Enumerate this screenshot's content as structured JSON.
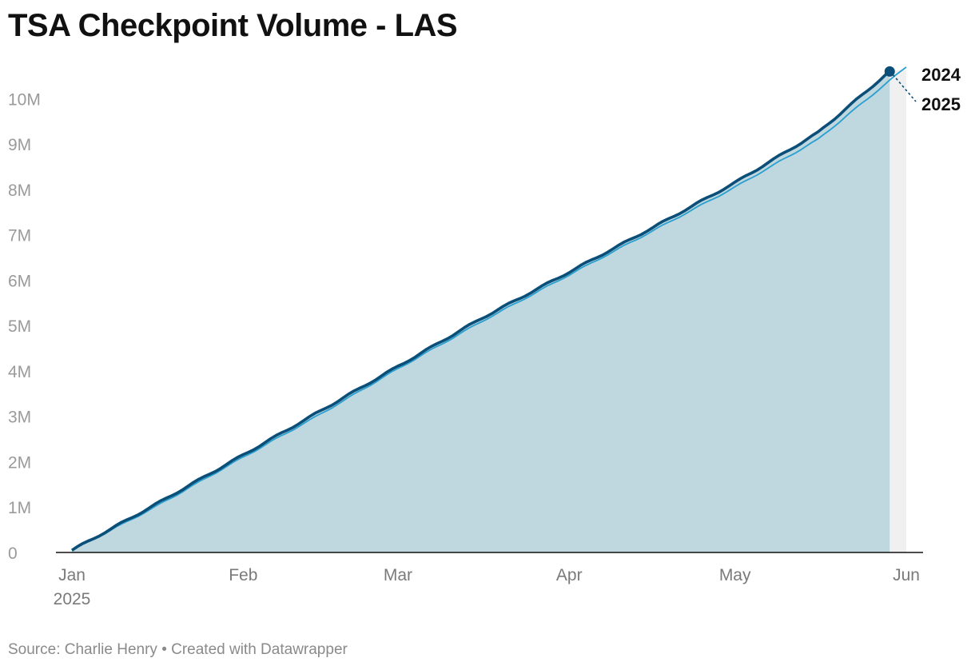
{
  "chart_data": {
    "type": "area",
    "title": "TSA Checkpoint Volume - LAS",
    "xlabel": "",
    "ylabel": "",
    "x_ticks": [
      "Jan",
      "Feb",
      "Mar",
      "Apr",
      "May",
      "Jun"
    ],
    "x_year_label": "2025",
    "x_range_days": [
      0,
      151
    ],
    "ylim": [
      0,
      10800000
    ],
    "y_ticks": [
      {
        "value": 0,
        "label": "0"
      },
      {
        "value": 1000000,
        "label": "1M"
      },
      {
        "value": 2000000,
        "label": "2M"
      },
      {
        "value": 3000000,
        "label": "3M"
      },
      {
        "value": 4000000,
        "label": "4M"
      },
      {
        "value": 5000000,
        "label": "5M"
      },
      {
        "value": 6000000,
        "label": "6M"
      },
      {
        "value": 7000000,
        "label": "7M"
      },
      {
        "value": 8000000,
        "label": "8M"
      },
      {
        "value": 9000000,
        "label": "9M"
      },
      {
        "value": 10000000,
        "label": "10M"
      }
    ],
    "series": [
      {
        "name": "2025",
        "style": "area-with-thick-line",
        "color": "#0b4f79",
        "fill": "#bfd7de",
        "x_days": [
          0,
          15,
          31,
          45,
          59,
          74,
          90,
          105,
          120,
          135,
          148
        ],
        "values": [
          50000,
          1050000,
          2150000,
          3120000,
          4100000,
          5150000,
          6180000,
          7150000,
          8150000,
          9250000,
          10600000
        ]
      },
      {
        "name": "2024",
        "style": "thin-line",
        "color": "#2a9fcf",
        "x_days": [
          0,
          15,
          31,
          45,
          59,
          74,
          90,
          105,
          120,
          135,
          151
        ],
        "values": [
          40000,
          1000000,
          2100000,
          3050000,
          4050000,
          5080000,
          6120000,
          7080000,
          8050000,
          9100000,
          10700000
        ]
      }
    ],
    "end_labels": [
      "2024",
      "2025"
    ],
    "latest_point": {
      "x_day": 148,
      "value": 10600000
    }
  },
  "source_text": "Source: Charlie Henry • Created with Datawrapper",
  "colors": {
    "line_2025": "#0b4f79",
    "line_2024": "#2a9fcf",
    "area_fill": "#bfd7de",
    "remaining_band": "#f0f0f0",
    "axis": "#111111",
    "tick_text": "#9a9a9a"
  }
}
